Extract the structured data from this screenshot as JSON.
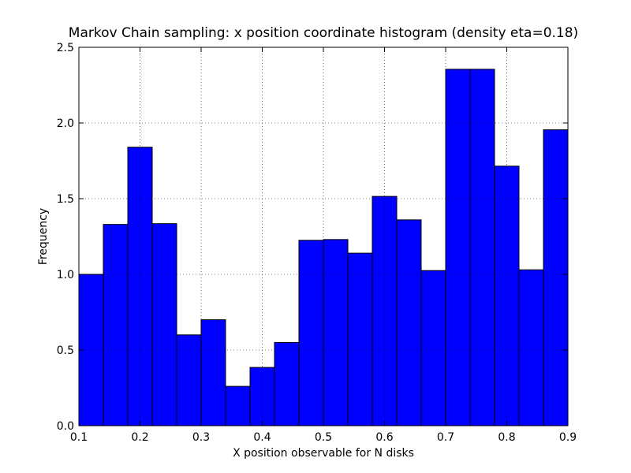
{
  "chart_data": {
    "type": "histogram",
    "title": "Markov Chain sampling: x position coordinate histogram (density eta=0.18)",
    "xlabel": "X position observable for N disks",
    "ylabel": "Frequency",
    "bins": [
      0.1,
      0.14,
      0.18,
      0.22,
      0.26,
      0.3,
      0.34,
      0.38,
      0.42,
      0.46,
      0.5,
      0.54,
      0.58,
      0.62,
      0.66,
      0.7,
      0.74,
      0.78,
      0.82,
      0.86,
      0.9
    ],
    "values": [
      1.0,
      1.33,
      1.84,
      1.335,
      0.6,
      0.7,
      0.26,
      0.385,
      0.55,
      1.225,
      1.23,
      1.14,
      1.515,
      1.36,
      1.025,
      2.355,
      2.355,
      1.715,
      1.03,
      1.955
    ],
    "color": "#0000ff",
    "xlim": [
      0.1,
      0.9
    ],
    "ylim": [
      0,
      2.5
    ],
    "xticks": [
      0.1,
      0.2,
      0.3,
      0.4,
      0.5,
      0.6,
      0.7,
      0.8,
      0.9
    ],
    "yticks": [
      {
        "value": 0,
        "label": "0.0"
      },
      0.5,
      {
        "value": 1,
        "label": "1.0"
      },
      1.5,
      {
        "value": 2,
        "label": "2.0"
      },
      2.5
    ],
    "grid": true
  }
}
